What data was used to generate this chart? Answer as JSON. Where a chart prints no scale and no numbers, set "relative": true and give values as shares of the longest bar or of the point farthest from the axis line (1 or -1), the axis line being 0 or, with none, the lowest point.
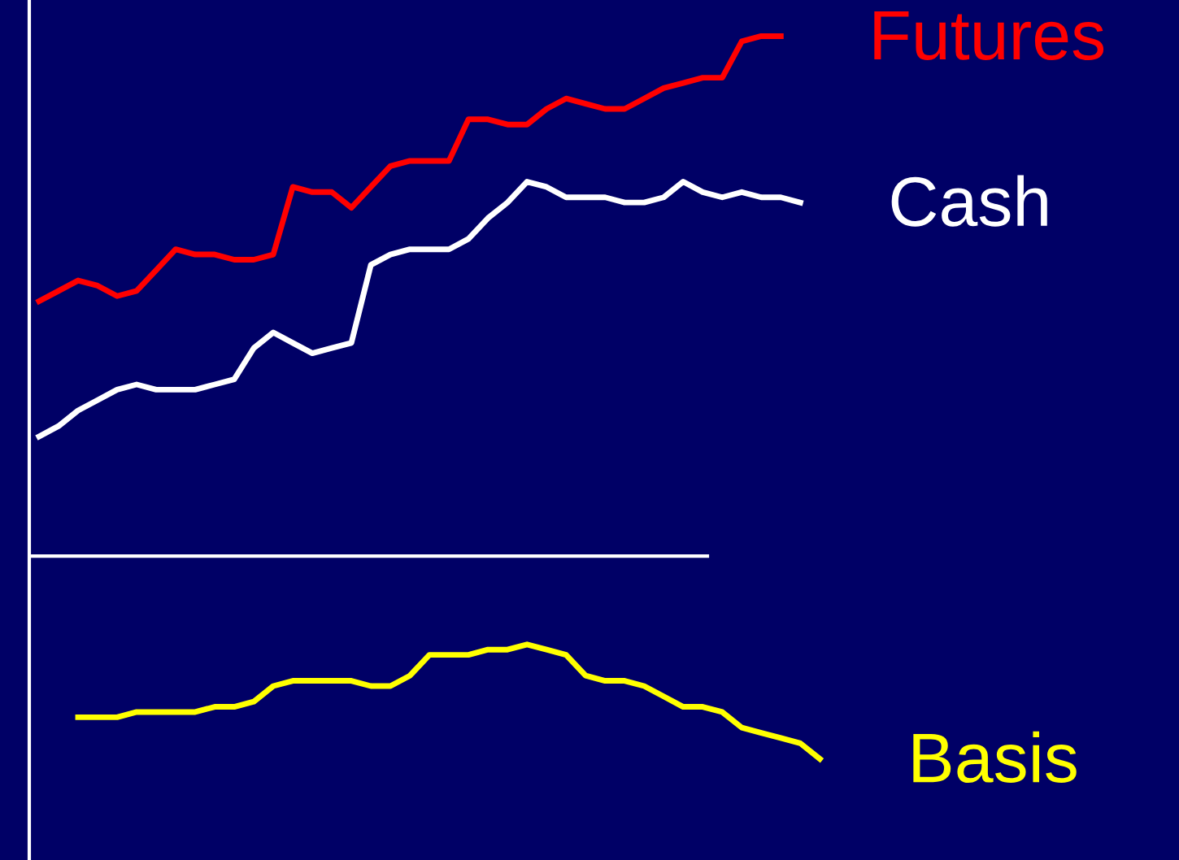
{
  "chart_data": {
    "type": "line",
    "relative": true,
    "legend": false,
    "marker": "none",
    "line_style": "solid",
    "categories": [
      null,
      null,
      null,
      null,
      null,
      null,
      null,
      null,
      null,
      null,
      null,
      null,
      null,
      null,
      null,
      null,
      null,
      null,
      null,
      null,
      null,
      null,
      null,
      null,
      null,
      null,
      null,
      null,
      null,
      null,
      null,
      null,
      null,
      null,
      null,
      null,
      null,
      null,
      null,
      null,
      null
    ],
    "series": [
      {
        "name": "Futures",
        "color": "#ff0000",
        "values": [
          0.49,
          0.51,
          0.53,
          0.52,
          0.5,
          0.51,
          0.55,
          0.59,
          0.58,
          0.58,
          0.57,
          0.57,
          0.58,
          0.71,
          0.7,
          0.7,
          0.67,
          0.71,
          0.75,
          0.76,
          0.76,
          0.76,
          0.84,
          0.84,
          0.83,
          0.83,
          0.86,
          0.88,
          0.87,
          0.86,
          0.86,
          0.88,
          0.9,
          0.91,
          0.92,
          0.92,
          0.99,
          1,
          1,
          null,
          null
        ]
      },
      {
        "name": "Cash",
        "color": "#ffffff",
        "values": [
          0.23,
          0.25,
          0.28,
          0.3,
          0.32,
          0.33,
          0.32,
          0.32,
          0.32,
          0.33,
          0.34,
          0.4,
          0.43,
          0.41,
          0.39,
          0.4,
          0.41,
          0.56,
          0.58,
          0.59,
          0.59,
          0.59,
          0.61,
          0.65,
          0.68,
          0.72,
          0.71,
          0.69,
          0.69,
          0.69,
          0.68,
          0.68,
          0.69,
          0.72,
          0.7,
          0.69,
          0.7,
          0.69,
          0.69,
          0.68,
          null
        ]
      },
      {
        "name": "Basis",
        "color": "#ffff00",
        "values": [
          null,
          null,
          -0.31,
          -0.31,
          -0.31,
          -0.3,
          -0.3,
          -0.3,
          -0.3,
          -0.29,
          -0.29,
          -0.28,
          -0.25,
          -0.24,
          -0.24,
          -0.24,
          -0.24,
          -0.25,
          -0.25,
          -0.23,
          -0.19,
          -0.19,
          -0.19,
          -0.18,
          -0.18,
          -0.17,
          -0.18,
          -0.19,
          -0.23,
          -0.24,
          -0.24,
          -0.25,
          -0.27,
          -0.29,
          -0.29,
          -0.3,
          -0.33,
          -0.34,
          -0.35,
          -0.36,
          -0.39
        ]
      }
    ]
  }
}
